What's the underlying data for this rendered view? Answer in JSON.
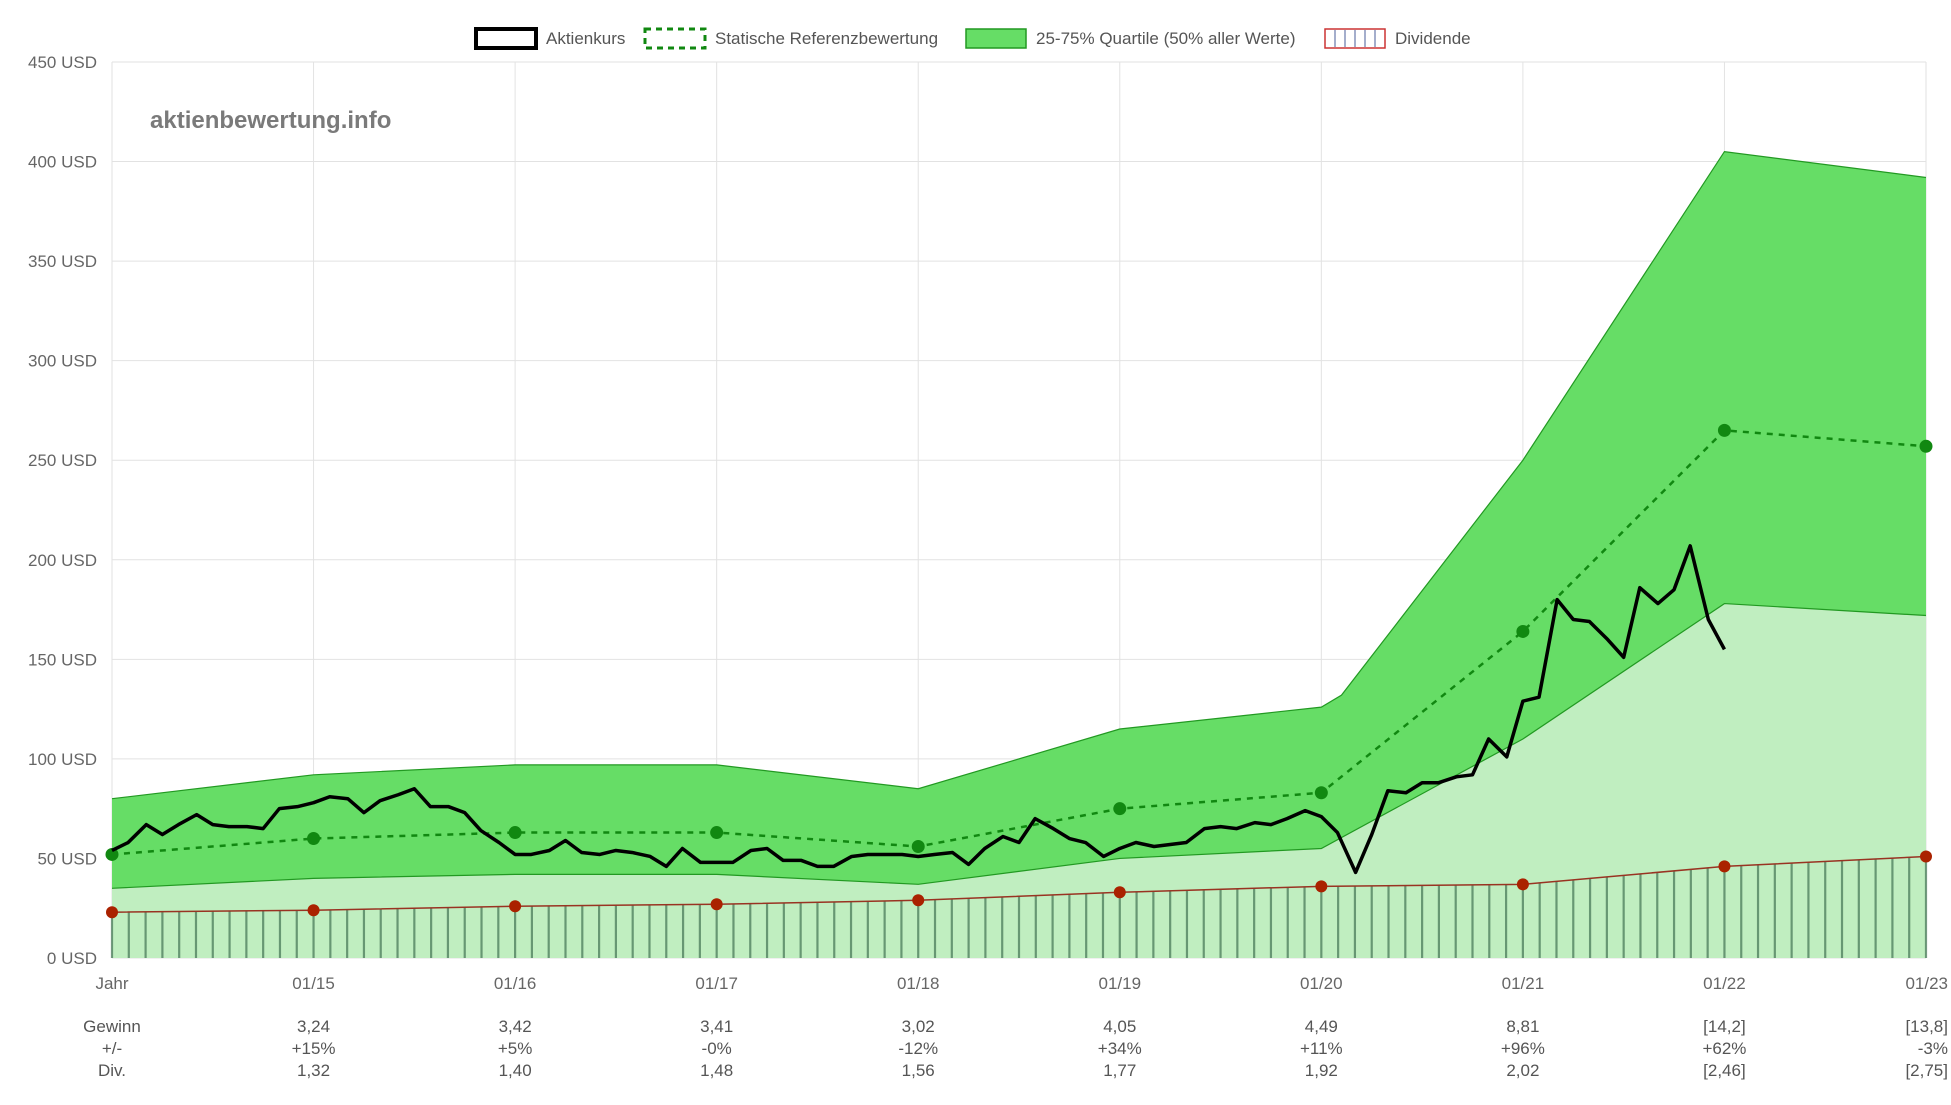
{
  "chart_data": {
    "type": "line",
    "watermark": "aktienbewertung.info",
    "legend": [
      {
        "label": "Aktienkurs",
        "style": "line",
        "color": "#000000"
      },
      {
        "label": "Statische Referenzbewertung",
        "style": "dashed",
        "color": "#118811"
      },
      {
        "label": "25-75% Quartile (50% aller Werte)",
        "style": "fill",
        "color": "#66dd66"
      },
      {
        "label": "Dividende",
        "style": "bars",
        "color": "#cc3333"
      }
    ],
    "ylim": [
      0,
      450
    ],
    "y_ticks": [
      "0 USD",
      "50 USD",
      "100 USD",
      "150 USD",
      "200 USD",
      "250 USD",
      "300 USD",
      "350 USD",
      "400 USD",
      "450 USD"
    ],
    "y_tick_values": [
      0,
      50,
      100,
      150,
      200,
      250,
      300,
      350,
      400,
      450
    ],
    "x_range": [
      2014,
      2023
    ],
    "x_labels": [
      "Jahr",
      "01/15",
      "01/16",
      "01/17",
      "01/18",
      "01/19",
      "01/20",
      "01/21",
      "01/22",
      "01/23"
    ],
    "x_label_values": [
      2014,
      2015,
      2016,
      2017,
      2018,
      2019,
      2020,
      2021,
      2022,
      2023
    ],
    "quartile_upper": {
      "x": [
        2014,
        2015,
        2016,
        2017,
        2018,
        2019,
        2020,
        2020.1,
        2021,
        2022,
        2023
      ],
      "y": [
        80,
        92,
        97,
        97,
        85,
        115,
        126,
        132,
        250,
        405,
        392
      ]
    },
    "quartile_lower": {
      "x": [
        2014,
        2015,
        2016,
        2017,
        2018,
        2019,
        2020,
        2021,
        2022,
        2023
      ],
      "y": [
        35,
        40,
        42,
        42,
        37,
        50,
        55,
        110,
        178,
        172
      ]
    },
    "reference": {
      "x": [
        2014,
        2015,
        2016,
        2017,
        2018,
        2019,
        2020,
        2021,
        2022,
        2023
      ],
      "y": [
        52,
        60,
        63,
        63,
        56,
        75,
        83,
        164,
        265,
        257
      ]
    },
    "dividend_line": {
      "x": [
        2014,
        2015,
        2016,
        2017,
        2018,
        2019,
        2020,
        2021,
        2022,
        2023
      ],
      "y": [
        23,
        24,
        26,
        27,
        29,
        33,
        36,
        37,
        46,
        51
      ]
    },
    "price": {
      "x": [
        2014.0,
        2014.08,
        2014.17,
        2014.25,
        2014.33,
        2014.42,
        2014.5,
        2014.58,
        2014.67,
        2014.75,
        2014.83,
        2014.92,
        2015.0,
        2015.08,
        2015.17,
        2015.25,
        2015.33,
        2015.42,
        2015.5,
        2015.58,
        2015.67,
        2015.75,
        2015.83,
        2015.92,
        2016.0,
        2016.08,
        2016.17,
        2016.25,
        2016.33,
        2016.42,
        2016.5,
        2016.58,
        2016.67,
        2016.75,
        2016.83,
        2016.92,
        2017.0,
        2017.08,
        2017.17,
        2017.25,
        2017.33,
        2017.42,
        2017.5,
        2017.58,
        2017.67,
        2017.75,
        2017.83,
        2017.92,
        2018.0,
        2018.08,
        2018.17,
        2018.25,
        2018.33,
        2018.42,
        2018.5,
        2018.58,
        2018.67,
        2018.75,
        2018.83,
        2018.92,
        2019.0,
        2019.08,
        2019.17,
        2019.25,
        2019.33,
        2019.42,
        2019.5,
        2019.58,
        2019.67,
        2019.75,
        2019.83,
        2019.92,
        2020.0,
        2020.08,
        2020.17,
        2020.25,
        2020.33,
        2020.42,
        2020.5,
        2020.58,
        2020.67,
        2020.75,
        2020.83,
        2020.92,
        2021.0,
        2021.08,
        2021.17,
        2021.25,
        2021.33,
        2021.42,
        2021.5,
        2021.58,
        2021.67,
        2021.75,
        2021.83,
        2021.92,
        2022.0
      ],
      "y": [
        54,
        58,
        67,
        62,
        67,
        72,
        67,
        66,
        66,
        65,
        75,
        76,
        78,
        81,
        80,
        73,
        79,
        82,
        85,
        76,
        76,
        73,
        64,
        58,
        52,
        52,
        54,
        59,
        53,
        52,
        54,
        53,
        51,
        46,
        55,
        48,
        48,
        48,
        54,
        55,
        49,
        49,
        46,
        46,
        51,
        52,
        52,
        52,
        51,
        52,
        53,
        47,
        55,
        61,
        58,
        70,
        65,
        60,
        58,
        51,
        55,
        58,
        56,
        57,
        58,
        65,
        66,
        65,
        68,
        67,
        70,
        74,
        71,
        63,
        43,
        62,
        84,
        83,
        88,
        88,
        91,
        92,
        110,
        101,
        129,
        131,
        180,
        170,
        169,
        160,
        151,
        186,
        178,
        185,
        207,
        170,
        155
      ]
    },
    "table": {
      "rows": [
        {
          "label": "Gewinn",
          "values": [
            "3,24",
            "3,42",
            "3,41",
            "3,02",
            "4,05",
            "4,49",
            "8,81",
            "[14,2]",
            "[13,8]"
          ]
        },
        {
          "label": "+/-",
          "values": [
            "+15%",
            "+5%",
            "-0%",
            "-12%",
            "+34%",
            "+11%",
            "+96%",
            "+62%",
            "-3%"
          ]
        },
        {
          "label": "Div.",
          "values": [
            "1,32",
            "1,40",
            "1,48",
            "1,56",
            "1,77",
            "1,92",
            "2,02",
            "[2,46]",
            "[2,75]"
          ]
        }
      ]
    },
    "colors": {
      "quartile_upper_fill": "#66dd66",
      "quartile_lower_fill": "#c0eec0",
      "quartile_stroke": "#229922",
      "reference": "#118811",
      "price": "#000000",
      "dividend_line": "#993322",
      "dividend_marker": "#aa2200",
      "dividend_bars": "#4a7a5a",
      "grid": "#e2e2e2"
    },
    "grid": true,
    "legend_position": "top"
  }
}
